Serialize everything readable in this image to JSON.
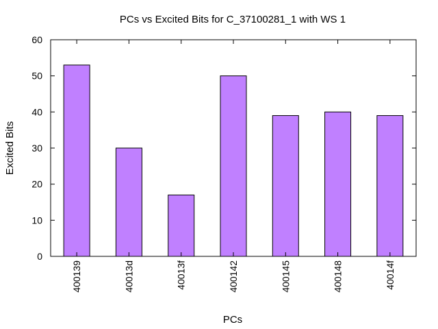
{
  "chart_data": {
    "type": "bar",
    "title": "PCs vs Excited Bits for C_37100281_1 with WS 1",
    "xlabel": "PCs",
    "ylabel": "Excited Bits",
    "categories": [
      "400139",
      "40013d",
      "40013f",
      "400142",
      "400145",
      "400148",
      "40014f"
    ],
    "values": [
      53,
      30,
      17,
      50,
      39,
      40,
      39
    ],
    "ylim": [
      0,
      60
    ],
    "yticks": [
      0,
      10,
      20,
      30,
      40,
      50,
      60
    ],
    "grid": false,
    "legend": "none",
    "bar_color": "#c080ff",
    "bar_edge_color": "#000000"
  }
}
